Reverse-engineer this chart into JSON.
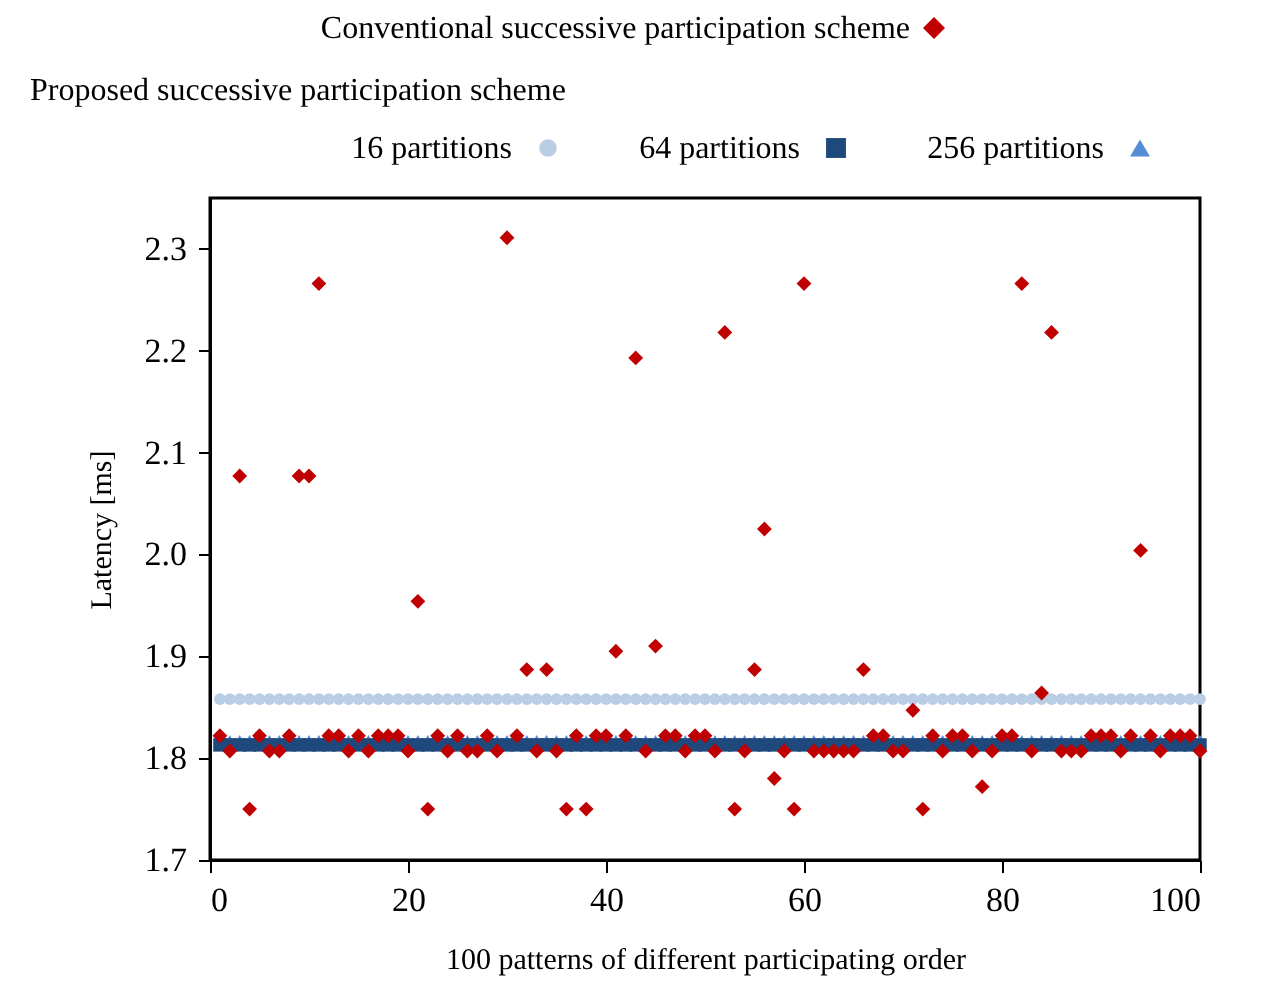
{
  "chart_data": {
    "type": "scatter",
    "xlabel": "100 patterns of different participating order",
    "ylabel": "Latency  [ms]",
    "legend_title": "Proposed  successive participation scheme",
    "legend": "top",
    "grid": false,
    "xlim": [
      0,
      100
    ],
    "xticks": [
      0,
      20,
      40,
      60,
      80,
      100
    ],
    "ylim": [
      1.7,
      2.35
    ],
    "yticks": [
      1.7,
      1.8,
      1.9,
      {
        "value": 2,
        "label": "2.0"
      },
      2.1,
      2.2,
      2.3
    ],
    "x": [
      1,
      2,
      3,
      4,
      5,
      6,
      7,
      8,
      9,
      10,
      11,
      12,
      13,
      14,
      15,
      16,
      17,
      18,
      19,
      20,
      21,
      22,
      23,
      24,
      25,
      26,
      27,
      28,
      29,
      30,
      31,
      32,
      33,
      34,
      35,
      36,
      37,
      38,
      39,
      40,
      41,
      42,
      43,
      44,
      45,
      46,
      47,
      48,
      49,
      50,
      51,
      52,
      53,
      54,
      55,
      56,
      57,
      58,
      59,
      60,
      61,
      62,
      63,
      64,
      65,
      66,
      67,
      68,
      69,
      70,
      71,
      72,
      73,
      74,
      75,
      76,
      77,
      78,
      79,
      80,
      81,
      82,
      83,
      84,
      85,
      86,
      87,
      88,
      89,
      90,
      91,
      92,
      93,
      94,
      95,
      96,
      97,
      98,
      99,
      100
    ],
    "series": [
      {
        "name": "Conventional successive  participation scheme",
        "color": "#c00000",
        "marker": "diamond",
        "values": [
          1.822,
          1.807,
          2.077,
          1.75,
          1.822,
          1.807,
          1.807,
          1.822,
          2.077,
          2.077,
          2.266,
          1.822,
          1.822,
          1.807,
          1.822,
          1.807,
          1.822,
          1.822,
          1.822,
          1.807,
          1.954,
          1.75,
          1.822,
          1.807,
          1.822,
          1.807,
          1.807,
          1.822,
          1.807,
          2.311,
          1.822,
          1.887,
          1.807,
          1.887,
          1.807,
          1.75,
          1.822,
          1.75,
          1.822,
          1.822,
          1.905,
          1.822,
          2.193,
          1.807,
          1.91,
          1.822,
          1.822,
          1.807,
          1.822,
          1.822,
          1.807,
          2.218,
          1.75,
          1.807,
          1.887,
          2.025,
          1.78,
          1.807,
          1.75,
          2.266,
          1.807,
          1.807,
          1.807,
          1.807,
          1.807,
          1.887,
          1.822,
          1.822,
          1.807,
          1.807,
          1.847,
          1.75,
          1.822,
          1.807,
          1.822,
          1.822,
          1.807,
          1.772,
          1.807,
          1.822,
          1.822,
          2.266,
          1.807,
          1.864,
          2.218,
          1.807,
          1.807,
          1.807,
          1.822,
          1.822,
          1.822,
          1.807,
          1.822,
          2.004,
          1.822,
          1.807,
          1.822,
          1.822,
          1.822,
          1.807
        ]
      },
      {
        "name": "16  partitions",
        "color": "#b9cde5",
        "marker": "circle",
        "values": [
          1.858,
          1.858,
          1.858,
          1.858,
          1.858,
          1.858,
          1.858,
          1.858,
          1.858,
          1.858,
          1.858,
          1.858,
          1.858,
          1.858,
          1.858,
          1.858,
          1.858,
          1.858,
          1.858,
          1.858,
          1.858,
          1.858,
          1.858,
          1.858,
          1.858,
          1.858,
          1.858,
          1.858,
          1.858,
          1.858,
          1.858,
          1.858,
          1.858,
          1.858,
          1.858,
          1.858,
          1.858,
          1.858,
          1.858,
          1.858,
          1.858,
          1.858,
          1.858,
          1.858,
          1.858,
          1.858,
          1.858,
          1.858,
          1.858,
          1.858,
          1.858,
          1.858,
          1.858,
          1.858,
          1.858,
          1.858,
          1.858,
          1.858,
          1.858,
          1.858,
          1.858,
          1.858,
          1.858,
          1.858,
          1.858,
          1.858,
          1.858,
          1.858,
          1.858,
          1.858,
          1.858,
          1.858,
          1.858,
          1.858,
          1.858,
          1.858,
          1.858,
          1.858,
          1.858,
          1.858,
          1.858,
          1.858,
          1.858,
          1.858,
          1.858,
          1.858,
          1.858,
          1.858,
          1.858,
          1.858,
          1.858,
          1.858,
          1.858,
          1.858,
          1.858,
          1.858,
          1.858,
          1.858,
          1.858,
          1.858
        ]
      },
      {
        "name": "64  partitions",
        "color": "#1f497d",
        "marker": "square",
        "values": [
          1.813,
          1.813,
          1.813,
          1.813,
          1.813,
          1.813,
          1.813,
          1.813,
          1.813,
          1.813,
          1.813,
          1.813,
          1.813,
          1.813,
          1.813,
          1.813,
          1.813,
          1.813,
          1.813,
          1.813,
          1.813,
          1.813,
          1.813,
          1.813,
          1.813,
          1.813,
          1.813,
          1.813,
          1.813,
          1.813,
          1.813,
          1.813,
          1.813,
          1.813,
          1.813,
          1.813,
          1.813,
          1.813,
          1.813,
          1.813,
          1.813,
          1.813,
          1.813,
          1.813,
          1.813,
          1.813,
          1.813,
          1.813,
          1.813,
          1.813,
          1.813,
          1.813,
          1.813,
          1.813,
          1.813,
          1.813,
          1.813,
          1.813,
          1.813,
          1.813,
          1.813,
          1.813,
          1.813,
          1.813,
          1.813,
          1.813,
          1.813,
          1.813,
          1.813,
          1.813,
          1.813,
          1.813,
          1.813,
          1.813,
          1.813,
          1.813,
          1.813,
          1.813,
          1.813,
          1.813,
          1.813,
          1.813,
          1.813,
          1.813,
          1.813,
          1.813,
          1.813,
          1.813,
          1.813,
          1.813,
          1.813,
          1.813,
          1.813,
          1.813,
          1.813,
          1.813,
          1.813,
          1.813,
          1.813,
          1.813
        ]
      },
      {
        "name": "256  partitions",
        "color": "#558ed5",
        "marker": "triangle",
        "values": [
          null,
          1.817,
          1.817,
          1.817,
          null,
          1.817,
          1.817,
          null,
          1.817,
          1.817,
          1.817,
          null,
          null,
          1.817,
          null,
          1.817,
          null,
          null,
          null,
          1.817,
          1.817,
          1.817,
          null,
          1.817,
          null,
          1.817,
          1.817,
          null,
          1.817,
          1.817,
          null,
          1.817,
          1.817,
          1.817,
          1.817,
          1.817,
          null,
          1.817,
          null,
          null,
          1.817,
          null,
          1.817,
          1.817,
          1.817,
          null,
          null,
          1.817,
          null,
          null,
          1.817,
          1.817,
          1.817,
          1.817,
          1.817,
          1.817,
          1.817,
          1.817,
          1.817,
          1.817,
          1.817,
          1.817,
          1.817,
          1.817,
          1.817,
          1.817,
          null,
          null,
          1.817,
          1.817,
          1.817,
          1.817,
          null,
          1.817,
          null,
          null,
          1.817,
          1.817,
          1.817,
          null,
          null,
          1.817,
          1.817,
          1.817,
          1.817,
          1.817,
          1.817,
          1.817,
          null,
          null,
          null,
          1.817,
          null,
          1.817,
          null,
          1.817,
          null,
          null,
          null,
          1.817
        ]
      }
    ]
  }
}
